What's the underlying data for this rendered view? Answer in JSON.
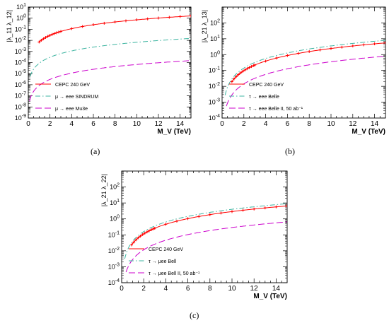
{
  "panel_captions": [
    "(a)",
    "(b)",
    "(c)"
  ],
  "colors": {
    "cepc": "#ff0000",
    "current": "#3cb4a0",
    "future": "#cc00cc",
    "marker": "#ff0000",
    "axis": "#000000"
  },
  "chart_data": [
    {
      "type": "line",
      "panel": "(a)",
      "xlabel": "M_V (TeV)",
      "ylabel": "|λ_11 λ_12|",
      "xlim": [
        0,
        15
      ],
      "ylim": [
        1e-09,
        10
      ],
      "yscale": "log",
      "xticks": [
        0,
        2,
        4,
        6,
        8,
        10,
        12,
        14
      ],
      "yticks": [
        -9,
        -8,
        -7,
        -6,
        -5,
        -4,
        -3,
        -2,
        -1,
        0,
        1
      ],
      "grid": false,
      "legend": {
        "placement": "bottom-left"
      },
      "series": [
        {
          "name": "CEPC 240 GeV",
          "style": "solid",
          "color": "#ff0000",
          "markers": true,
          "x0": 1.0,
          "ref_x": 15,
          "ref_y": 1.6,
          "low_k": 0
        },
        {
          "name": "μ → eee SINDRUM",
          "style": "dashdot",
          "color": "#3cb4a0",
          "markers": false,
          "x0": 0.18,
          "ref_x": 15,
          "ref_y": 0.015,
          "low_k": 0.3
        },
        {
          "name": "μ → eee Mu3e",
          "style": "dashed",
          "color": "#cc00cc",
          "markers": false,
          "x0": 0.12,
          "ref_x": 15,
          "ref_y": 0.00015,
          "low_k": 0.3
        }
      ]
    },
    {
      "type": "line",
      "panel": "(b)",
      "xlabel": "M_V (TeV)",
      "ylabel": "|λ_21 λ_13|",
      "xlim": [
        0,
        15
      ],
      "ylim": [
        0.0001,
        1000
      ],
      "yscale": "log",
      "xticks": [
        0,
        2,
        4,
        6,
        8,
        10,
        12,
        14
      ],
      "yticks": [
        -4,
        -3,
        -2,
        -1,
        0,
        1,
        2
      ],
      "grid": false,
      "legend": {
        "placement": "bottom-left"
      },
      "series": [
        {
          "name": "CEPC 240 GeV",
          "style": "solid",
          "color": "#ff0000",
          "markers": true,
          "x0": 0.9,
          "ref_x": 15,
          "ref_y": 5.5,
          "low_k": 0
        },
        {
          "name": "τ → eee Belle",
          "style": "dashdot",
          "color": "#3cb4a0",
          "markers": false,
          "x0": 0.28,
          "ref_x": 15,
          "ref_y": 8.0,
          "low_k": 0
        },
        {
          "name": "τ → eee Belle II, 50 ab⁻¹",
          "style": "dashed",
          "color": "#cc00cc",
          "markers": false,
          "x0": 0.4,
          "ref_x": 15,
          "ref_y": 0.8,
          "low_k": 0
        }
      ]
    },
    {
      "type": "line",
      "panel": "(c)",
      "xlabel": "M_V (TeV)",
      "ylabel": "|λ_21 λ_22|",
      "xlim": [
        0,
        15
      ],
      "ylim": [
        0.0001,
        1000
      ],
      "yscale": "log",
      "xticks": [
        0,
        2,
        4,
        6,
        8,
        10,
        12,
        14
      ],
      "yticks": [
        -4,
        -3,
        -2,
        -1,
        0,
        1,
        2
      ],
      "grid": false,
      "legend": {
        "placement": "bottom-left"
      },
      "series": [
        {
          "name": "CEPC 240 GeV",
          "style": "solid",
          "color": "#ff0000",
          "markers": true,
          "x0": 0.9,
          "ref_x": 15,
          "ref_y": 6.5,
          "low_k": 0
        },
        {
          "name": "τ → μee Bell",
          "style": "dashdot",
          "color": "#3cb4a0",
          "markers": false,
          "x0": 0.28,
          "ref_x": 15,
          "ref_y": 9.0,
          "low_k": 0
        },
        {
          "name": "τ → μee Bell II, 50 ab⁻¹",
          "style": "dashed",
          "color": "#cc00cc",
          "markers": false,
          "x0": 0.4,
          "ref_x": 15,
          "ref_y": 0.65,
          "low_k": 0
        }
      ]
    }
  ]
}
